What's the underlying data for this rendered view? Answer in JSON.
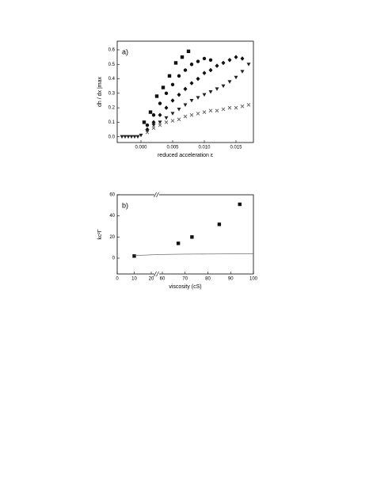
{
  "chart_data": [
    {
      "type": "scatter",
      "annotation": "a)",
      "x_label": "reduced acceleration ε",
      "y_label": "dh / dx |max",
      "xlim": [
        -0.00375,
        0.01775
      ],
      "ylim": [
        -0.04,
        0.66
      ],
      "xticks": [
        {
          "value": 0,
          "label": "0.000"
        },
        {
          "value": 0.005,
          "label": "0.005"
        },
        {
          "value": 0.01,
          "label": "0.010"
        },
        {
          "value": 0.015,
          "label": "0.015"
        }
      ],
      "yticks": [
        {
          "value": 0,
          "label": "0.0"
        },
        {
          "value": 0.1,
          "label": "0.1"
        },
        {
          "value": 0.2,
          "label": "0.2"
        },
        {
          "value": 0.3,
          "label": "0.3"
        },
        {
          "value": 0.4,
          "label": "0.4"
        },
        {
          "value": 0.5,
          "label": "0.5"
        },
        {
          "value": 0.6,
          "label": "0.6"
        }
      ],
      "series": [
        {
          "marker": "square",
          "color": "#111111",
          "x": [
            0.0005,
            0.0015,
            0.0025,
            0.0035,
            0.0045,
            0.0055,
            0.0065,
            0.0075
          ],
          "values": [
            0.1,
            0.17,
            0.28,
            0.34,
            0.42,
            0.51,
            0.55,
            0.59
          ]
        },
        {
          "marker": "circle",
          "color": "#111111",
          "x": [
            0.001,
            0.002,
            0.003,
            0.004,
            0.005,
            0.006,
            0.007,
            0.008,
            0.009,
            0.01,
            0.011
          ],
          "values": [
            0.08,
            0.15,
            0.23,
            0.3,
            0.36,
            0.42,
            0.46,
            0.5,
            0.52,
            0.54,
            0.53
          ]
        },
        {
          "marker": "diamond",
          "color": "#111111",
          "x": [
            0.001,
            0.002,
            0.003,
            0.004,
            0.005,
            0.006,
            0.007,
            0.008,
            0.009,
            0.01,
            0.011,
            0.012,
            0.013,
            0.014,
            0.015,
            0.016
          ],
          "values": [
            0.05,
            0.1,
            0.15,
            0.2,
            0.25,
            0.29,
            0.33,
            0.37,
            0.4,
            0.44,
            0.46,
            0.49,
            0.51,
            0.53,
            0.55,
            0.54
          ]
        },
        {
          "marker": "triangle-down",
          "color": "#222222",
          "x": [
            -0.003,
            -0.0025,
            -0.002,
            -0.0015,
            -0.001,
            -0.0005,
            0,
            0.001,
            0.002,
            0.003,
            0.004,
            0.005,
            0.006,
            0.007,
            0.008,
            0.009,
            0.01,
            0.011,
            0.012,
            0.013,
            0.014,
            0.015,
            0.016,
            0.017
          ],
          "values": [
            0,
            0,
            0,
            0,
            0,
            0,
            0.01,
            0.04,
            0.08,
            0.1,
            0.13,
            0.16,
            0.19,
            0.22,
            0.25,
            0.27,
            0.29,
            0.31,
            0.33,
            0.35,
            0.38,
            0.41,
            0.45,
            0.5
          ]
        },
        {
          "marker": "x",
          "color": "#666666",
          "x": [
            0.001,
            0.002,
            0.003,
            0.004,
            0.005,
            0.006,
            0.007,
            0.008,
            0.009,
            0.01,
            0.011,
            0.012,
            0.013,
            0.014,
            0.015,
            0.016,
            0.017
          ],
          "values": [
            0.03,
            0.06,
            0.08,
            0.1,
            0.11,
            0.12,
            0.14,
            0.15,
            0.16,
            0.17,
            0.18,
            0.18,
            0.19,
            0.2,
            0.2,
            0.21,
            0.22
          ]
        }
      ]
    },
    {
      "type": "scatter",
      "annotation": "b)",
      "x_label": "viscosity (cS)",
      "y_label": "kc²Γ",
      "xlim": [
        0,
        100
      ],
      "axis_break": [
        20,
        60
      ],
      "ylim": [
        -15,
        60
      ],
      "xticks": [
        0,
        10,
        20,
        60,
        70,
        80,
        90,
        100
      ],
      "yticks": [
        0,
        20,
        40,
        60
      ],
      "series": [
        {
          "marker": "square",
          "color": "#111111",
          "x": [
            10,
            67,
            73,
            85,
            94
          ],
          "values": [
            2,
            14,
            20,
            32,
            51
          ]
        },
        {
          "marker": "line",
          "color": "#555555",
          "x": [
            10,
            60,
            70,
            80,
            90,
            100
          ],
          "values": [
            2.5,
            3.5,
            3.8,
            3.9,
            4,
            4
          ]
        }
      ]
    }
  ]
}
